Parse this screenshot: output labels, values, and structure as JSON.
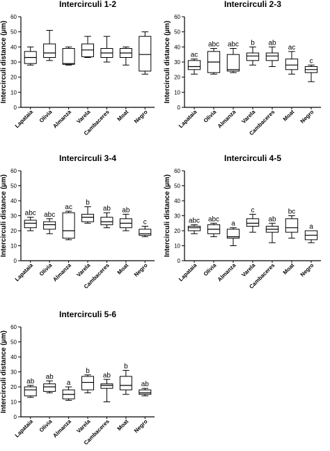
{
  "chart_data": [
    {
      "type": "box",
      "title": "Intercirculi 1-2",
      "ylabel": "Intercirculi distance (µm)",
      "ylim": [
        0,
        60
      ],
      "yticks": [
        0,
        10,
        20,
        30,
        40,
        50,
        60
      ],
      "categories": [
        "Lapataia",
        "Olivia",
        "Almanza",
        "Varela",
        "Cambaceres",
        "Moat",
        "Negro"
      ],
      "boxes": [
        {
          "min": 28,
          "q1": 29,
          "median": 33,
          "q3": 37,
          "max": 40
        },
        {
          "min": 31,
          "q1": 33,
          "median": 36,
          "q3": 42,
          "max": 51
        },
        {
          "min": 28,
          "q1": 28.5,
          "median": 29,
          "q3": 39,
          "max": 40
        },
        {
          "min": 33,
          "q1": 33.5,
          "median": 38,
          "q3": 42,
          "max": 47
        },
        {
          "min": 30,
          "q1": 33,
          "median": 36,
          "q3": 39,
          "max": 47
        },
        {
          "min": 28,
          "q1": 33,
          "median": 36,
          "q3": 39,
          "max": 40
        },
        {
          "min": 22,
          "q1": 24,
          "median": 35,
          "q3": 47,
          "max": 50
        }
      ],
      "labels": []
    },
    {
      "type": "box",
      "title": "Intercirculi 2-3",
      "ylabel": "Intercirculi distance (µm)",
      "ylim": [
        0,
        60
      ],
      "yticks": [
        0,
        10,
        20,
        30,
        40,
        50,
        60
      ],
      "categories": [
        "Lapataia",
        "Olivia",
        "Almanza",
        "Varela",
        "Cambaceres",
        "Moat",
        "Negro"
      ],
      "boxes": [
        {
          "min": 22,
          "q1": 25,
          "median": 27,
          "q3": 31,
          "max": 32
        },
        {
          "min": 22,
          "q1": 23,
          "median": 30,
          "q3": 37,
          "max": 39
        },
        {
          "min": 23,
          "q1": 24,
          "median": 25,
          "q3": 35,
          "max": 39
        },
        {
          "min": 28,
          "q1": 31,
          "median": 34,
          "q3": 36,
          "max": 40
        },
        {
          "min": 27,
          "q1": 31,
          "median": 34,
          "q3": 36,
          "max": 40
        },
        {
          "min": 22,
          "q1": 25,
          "median": 28,
          "q3": 32,
          "max": 37
        },
        {
          "min": 17,
          "q1": 23,
          "median": 25,
          "q3": 27,
          "max": 28
        }
      ],
      "labels": [
        "ac",
        "abc",
        "abc",
        "b",
        "ab",
        "ac",
        "c"
      ]
    },
    {
      "type": "box",
      "title": "Intercirculi 3-4",
      "ylabel": "Intercirculi distance (µm)",
      "ylim": [
        0,
        60
      ],
      "yticks": [
        0,
        10,
        20,
        30,
        40,
        50,
        60
      ],
      "categories": [
        "Lapataia",
        "Olivia",
        "Almanza",
        "Varela",
        "Cambaceres",
        "Moat",
        "Negro"
      ],
      "boxes": [
        {
          "min": 20,
          "q1": 22,
          "median": 25,
          "q3": 27,
          "max": 29
        },
        {
          "min": 18,
          "q1": 21,
          "median": 24,
          "q3": 26,
          "max": 28
        },
        {
          "min": 14,
          "q1": 15,
          "median": 20,
          "q3": 32,
          "max": 33
        },
        {
          "min": 25,
          "q1": 26,
          "median": 29,
          "q3": 31,
          "max": 36
        },
        {
          "min": 22,
          "q1": 24,
          "median": 26,
          "q3": 29,
          "max": 32
        },
        {
          "min": 20,
          "q1": 22,
          "median": 25,
          "q3": 28,
          "max": 31
        },
        {
          "min": 16,
          "q1": 17,
          "median": 18,
          "q3": 21,
          "max": 23
        }
      ],
      "labels": [
        "abc",
        "abc",
        "ac",
        "b",
        "ab",
        "ab",
        "c"
      ]
    },
    {
      "type": "box",
      "title": "Intercirculi 4-5",
      "ylabel": "Intercirculi distance (µm)",
      "ylim": [
        0,
        60
      ],
      "yticks": [
        0,
        10,
        20,
        30,
        40,
        50,
        60
      ],
      "categories": [
        "Lapataia",
        "Olivia",
        "Almanza",
        "Varela",
        "Cambaceres",
        "Moat",
        "Negro"
      ],
      "boxes": [
        {
          "min": 18,
          "q1": 20,
          "median": 22,
          "q3": 23,
          "max": 24
        },
        {
          "min": 16,
          "q1": 18,
          "median": 21,
          "q3": 24,
          "max": 25
        },
        {
          "min": 10,
          "q1": 15,
          "median": 16,
          "q3": 21,
          "max": 22
        },
        {
          "min": 19,
          "q1": 23,
          "median": 25,
          "q3": 28,
          "max": 31
        },
        {
          "min": 12,
          "q1": 19,
          "median": 21,
          "q3": 23,
          "max": 25
        },
        {
          "min": 15,
          "q1": 19,
          "median": 22,
          "q3": 28,
          "max": 30
        },
        {
          "min": 12,
          "q1": 14,
          "median": 17,
          "q3": 20,
          "max": 20
        }
      ],
      "labels": [
        "abc",
        "abc",
        "a",
        "c",
        "ab",
        "bc",
        "a"
      ]
    },
    {
      "type": "box",
      "title": "Intercirculi 5-6",
      "ylabel": "Intercirculi distance (µm)",
      "ylim": [
        0,
        60
      ],
      "yticks": [
        0,
        10,
        20,
        30,
        40,
        50,
        60
      ],
      "categories": [
        "Lapataia",
        "Olivia",
        "Almanza",
        "Varela",
        "Cambaceres",
        "Moat",
        "Negro"
      ],
      "boxes": [
        {
          "min": 13,
          "q1": 14,
          "median": 18,
          "q3": 20,
          "max": 21
        },
        {
          "min": 16,
          "q1": 17,
          "median": 20,
          "q3": 22,
          "max": 24
        },
        {
          "min": 11,
          "q1": 12,
          "median": 15,
          "q3": 18,
          "max": 20
        },
        {
          "min": 16,
          "q1": 18,
          "median": 23,
          "q3": 27,
          "max": 28
        },
        {
          "min": 10,
          "q1": 19,
          "median": 21,
          "q3": 22,
          "max": 25
        },
        {
          "min": 15,
          "q1": 18,
          "median": 21,
          "q3": 27,
          "max": 31
        },
        {
          "min": 14,
          "q1": 15,
          "median": 16,
          "q3": 18,
          "max": 19
        }
      ],
      "labels": [
        "ab",
        "ab",
        "a",
        "b",
        "ab",
        "b",
        "ab"
      ]
    }
  ]
}
